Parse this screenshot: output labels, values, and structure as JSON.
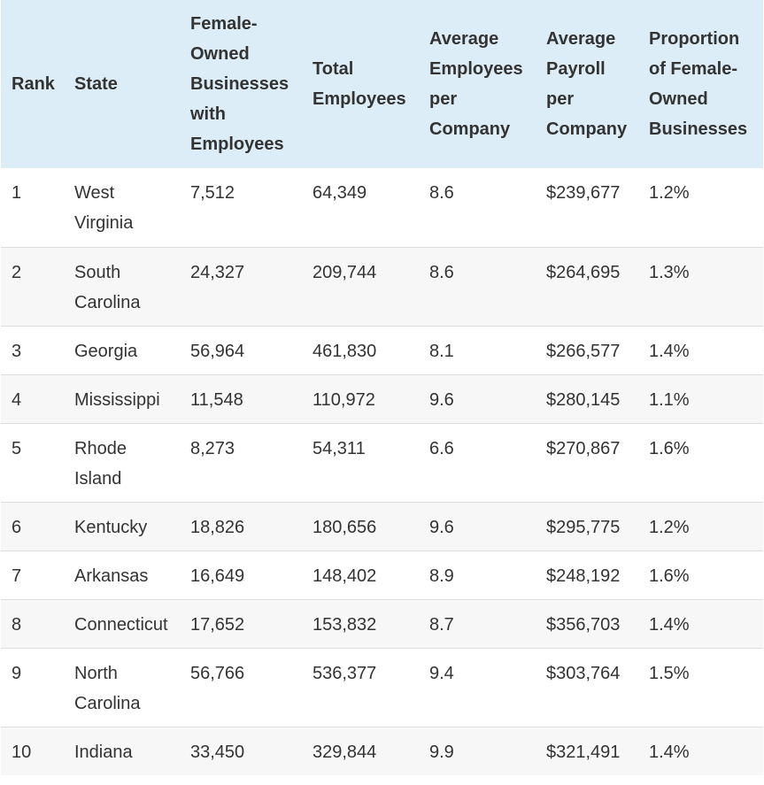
{
  "table": {
    "headers": {
      "rank": "Rank",
      "state": "State",
      "female_owned": [
        "Female-",
        "Owned",
        "Businesses",
        "with",
        "Employees"
      ],
      "total_employees": [
        "Total",
        "Employees"
      ],
      "avg_employees": [
        "Average",
        "Employees",
        "per",
        "Company"
      ],
      "avg_payroll": [
        "Average",
        "Payroll",
        "per",
        "Company"
      ],
      "proportion": [
        "Proportion",
        "of Female-",
        "Owned",
        "Businesses"
      ]
    },
    "rows": [
      {
        "rank": "1",
        "state": [
          "West",
          "Virginia"
        ],
        "female_owned": "7,512",
        "total_employees": "64,349",
        "avg_employees": "8.6",
        "avg_payroll": "$239,677",
        "proportion": "1.2%"
      },
      {
        "rank": "2",
        "state": [
          "South",
          "Carolina"
        ],
        "female_owned": "24,327",
        "total_employees": "209,744",
        "avg_employees": "8.6",
        "avg_payroll": "$264,695",
        "proportion": "1.3%"
      },
      {
        "rank": "3",
        "state": [
          "Georgia"
        ],
        "female_owned": "56,964",
        "total_employees": "461,830",
        "avg_employees": "8.1",
        "avg_payroll": "$266,577",
        "proportion": "1.4%"
      },
      {
        "rank": "4",
        "state": [
          "Mississippi"
        ],
        "female_owned": "11,548",
        "total_employees": "110,972",
        "avg_employees": "9.6",
        "avg_payroll": "$280,145",
        "proportion": "1.1%"
      },
      {
        "rank": "5",
        "state": [
          "Rhode",
          "Island"
        ],
        "female_owned": "8,273",
        "total_employees": "54,311",
        "avg_employees": "6.6",
        "avg_payroll": "$270,867",
        "proportion": "1.6%"
      },
      {
        "rank": "6",
        "state": [
          "Kentucky"
        ],
        "female_owned": "18,826",
        "total_employees": "180,656",
        "avg_employees": "9.6",
        "avg_payroll": "$295,775",
        "proportion": "1.2%"
      },
      {
        "rank": "7",
        "state": [
          "Arkansas"
        ],
        "female_owned": "16,649",
        "total_employees": "148,402",
        "avg_employees": "8.9",
        "avg_payroll": "$248,192",
        "proportion": "1.6%"
      },
      {
        "rank": "8",
        "state": [
          "Connecticut"
        ],
        "female_owned": "17,652",
        "total_employees": "153,832",
        "avg_employees": "8.7",
        "avg_payroll": "$356,703",
        "proportion": "1.4%"
      },
      {
        "rank": "9",
        "state": [
          "North",
          "Carolina"
        ],
        "female_owned": "56,766",
        "total_employees": "536,377",
        "avg_employees": "9.4",
        "avg_payroll": "$303,764",
        "proportion": "1.5%"
      },
      {
        "rank": "10",
        "state": [
          "Indiana"
        ],
        "female_owned": "33,450",
        "total_employees": "329,844",
        "avg_employees": "9.9",
        "avg_payroll": "$321,491",
        "proportion": "1.4%"
      }
    ]
  },
  "colors": {
    "header_bg": "#dcedf7",
    "alt_row_bg": "#f7f7f7",
    "border": "#dddddd",
    "text": "#333333"
  }
}
